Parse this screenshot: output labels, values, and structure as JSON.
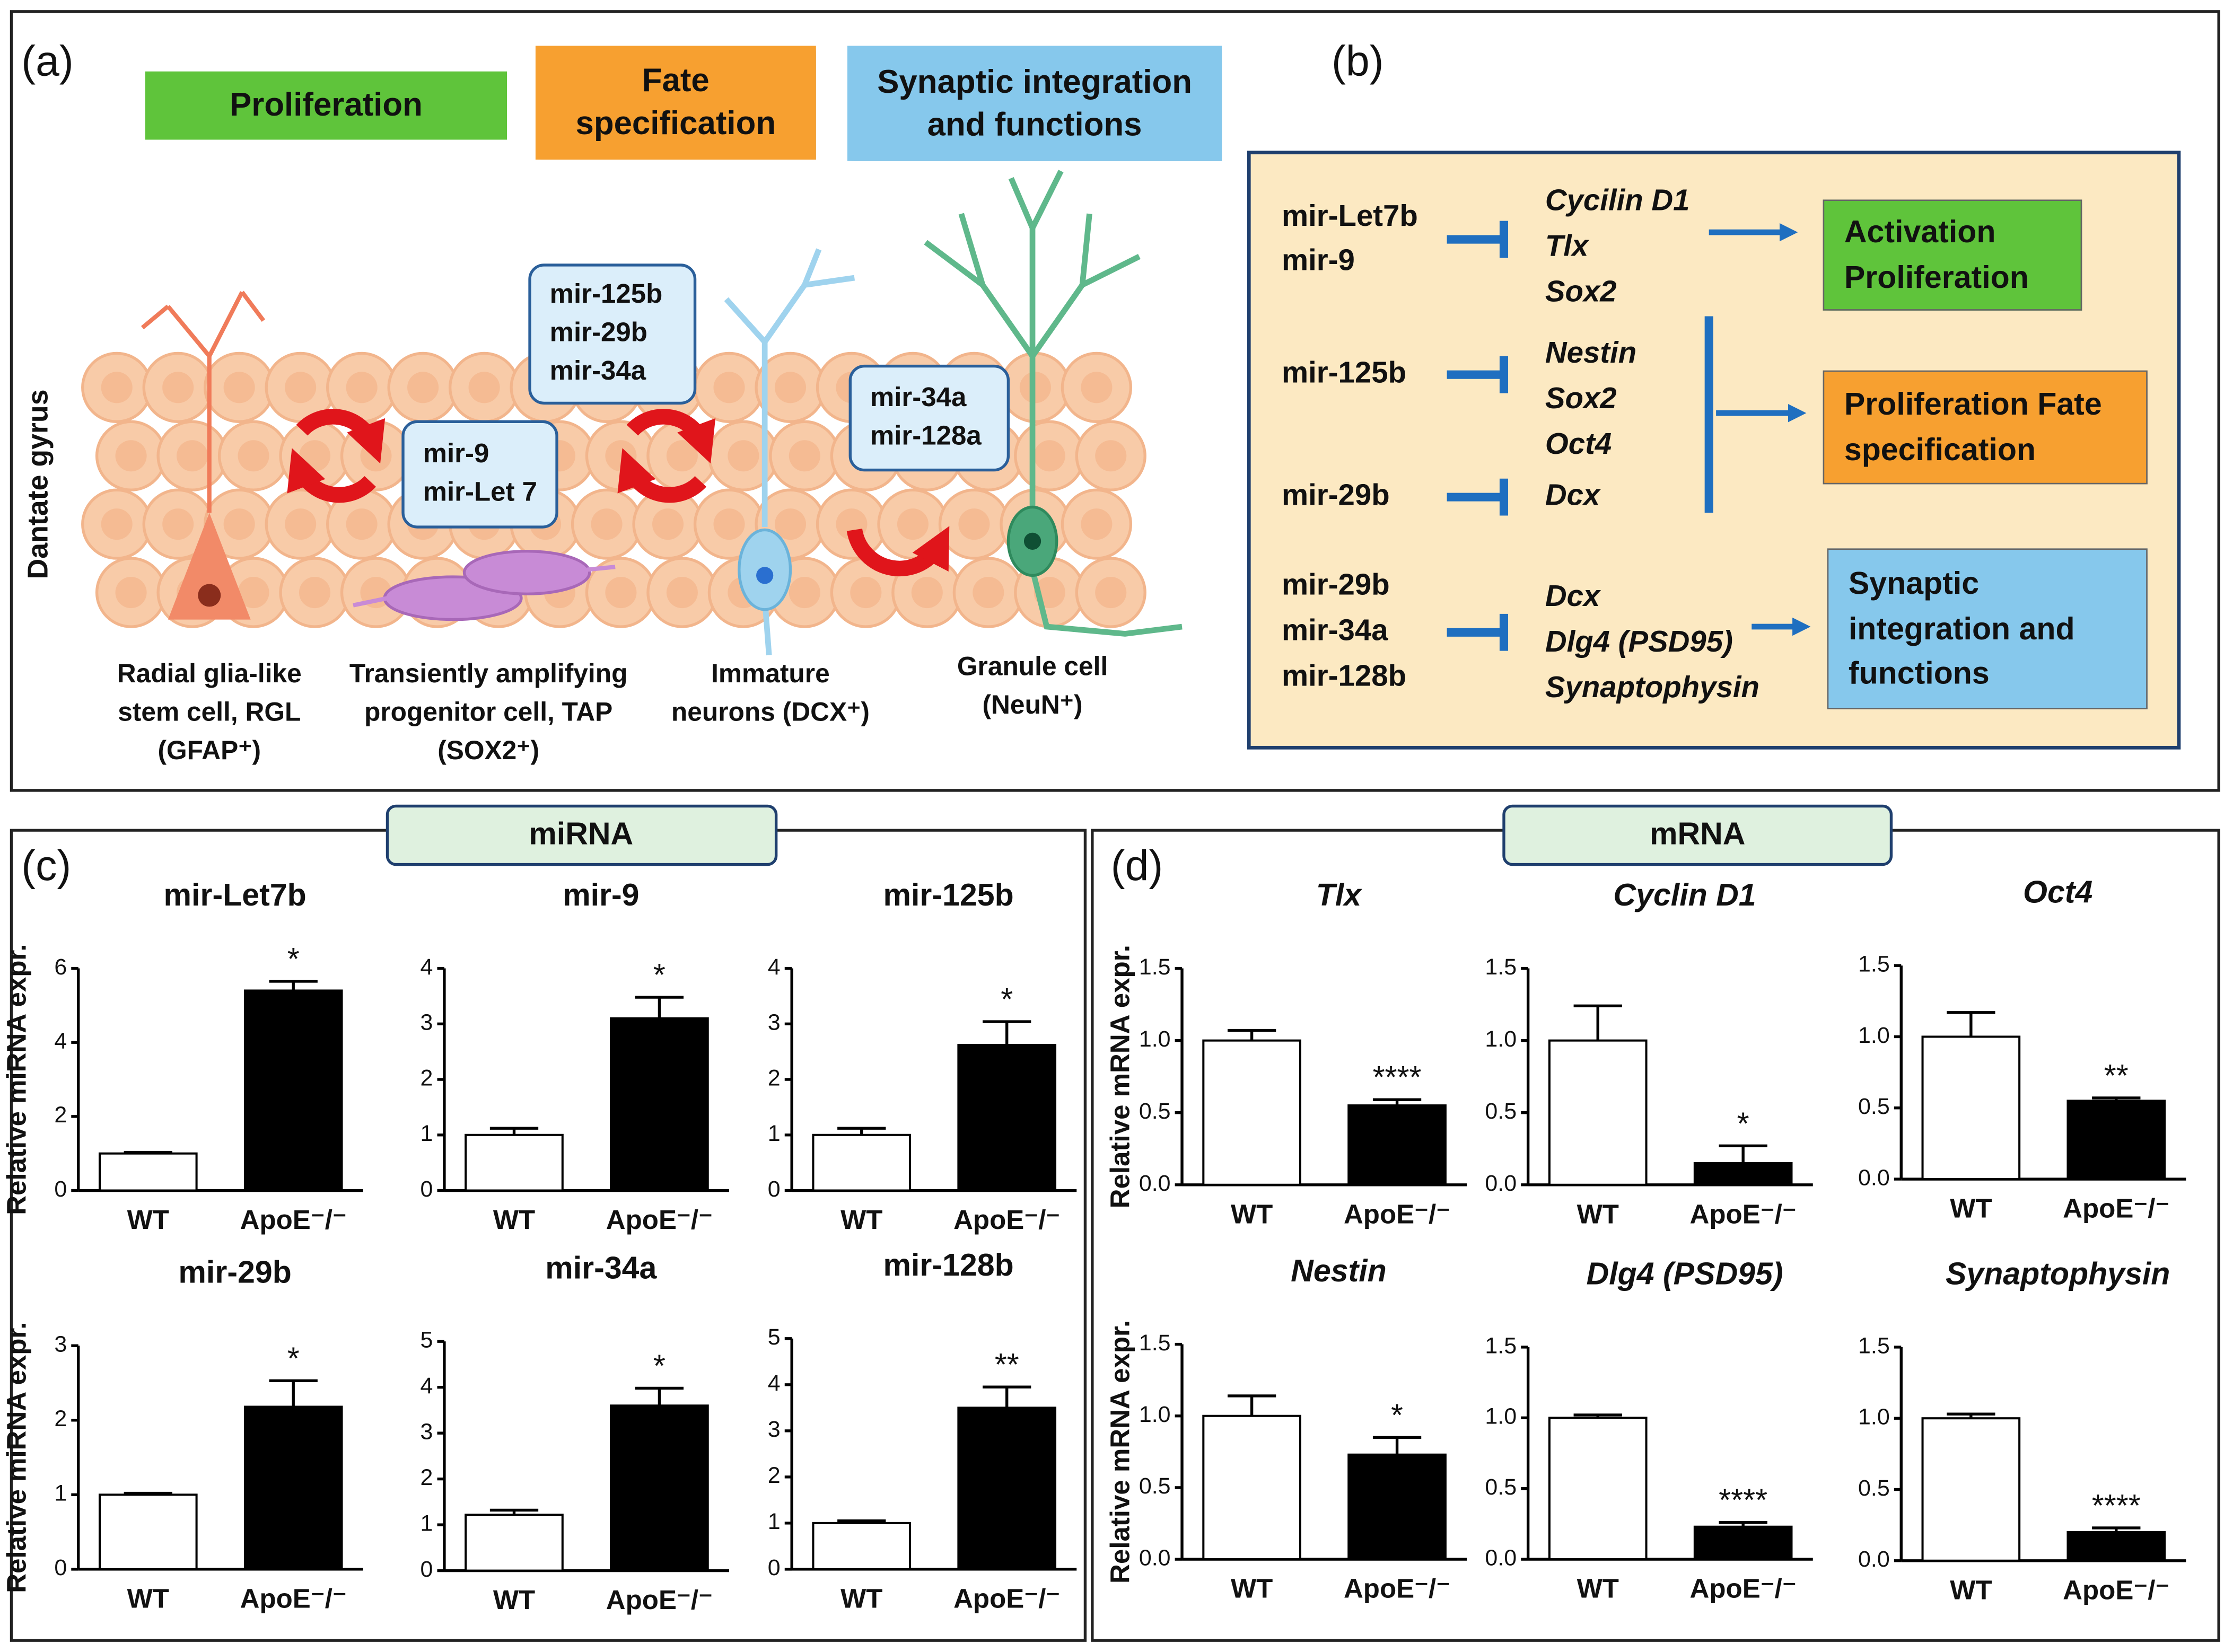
{
  "panel_a": {
    "label": "(a)",
    "stages": [
      "Proliferation",
      "Fate specification",
      "Synaptic integration and functions"
    ],
    "region": "Dantate gyrus",
    "mirna_groups": [
      [
        "mir-125b",
        "mir-29b",
        "mir-34a"
      ],
      [
        "mir-9",
        "mir-Let 7"
      ],
      [
        "mir-34a",
        "mir-128a"
      ]
    ],
    "cells": [
      "Radial glia-like stem cell, RGL (GFAP⁺)",
      "Transiently amplifying progenitor cell, TAP (SOX2⁺)",
      "Immature neurons (DCX⁺)",
      "Granule cell (NeuN⁺)"
    ]
  },
  "panel_b": {
    "label": "(b)",
    "pathways": [
      {
        "mirnas": [
          [
            "mir-Let7b",
            "mir-9"
          ]
        ],
        "targets": [
          [
            "Cycilin D1",
            "Tlx",
            "Sox2"
          ]
        ],
        "outcome": "Activation Proliferation"
      },
      {
        "mirnas": [
          [
            "mir-125b"
          ],
          [
            "mir-29b"
          ]
        ],
        "targets": [
          [
            "Nestin",
            "Sox2",
            "Oct4"
          ],
          [
            "Dcx"
          ]
        ],
        "outcome": "Proliferation Fate specification"
      },
      {
        "mirnas": [
          [
            "mir-29b",
            "mir-34a",
            "mir-128b"
          ]
        ],
        "targets": [
          [
            "Dcx",
            "Dlg4 (PSD95)",
            "Synaptophysin"
          ]
        ],
        "outcome": "Synaptic integration and functions"
      }
    ]
  },
  "panel_c": {
    "label": "(c)",
    "group": "miRNA"
  },
  "panel_d": {
    "label": "(d)",
    "group": "mRNA"
  },
  "chart_data": [
    {
      "type": "bar",
      "title": "mir-Let7b",
      "ylabel": "Relative miRNA expr.",
      "categories": [
        "WT",
        "ApoE⁻/⁻"
      ],
      "values": [
        1,
        5.4
      ],
      "errors": [
        0.03,
        0.25
      ],
      "colors": [
        "#ffffff",
        "#000000"
      ],
      "annotation": "*",
      "ylim": [
        0,
        6
      ],
      "yticks": [
        0,
        2,
        4,
        6
      ]
    },
    {
      "type": "bar",
      "title": "mir-9",
      "categories": [
        "WT",
        "ApoE⁻/⁻"
      ],
      "values": [
        1,
        3.1
      ],
      "errors": [
        0.12,
        0.38
      ],
      "colors": [
        "#ffffff",
        "#000000"
      ],
      "annotation": "*",
      "ylim": [
        0,
        4
      ],
      "yticks": [
        0,
        1,
        2,
        3,
        4
      ]
    },
    {
      "type": "bar",
      "title": "mir-125b",
      "categories": [
        "WT",
        "ApoE⁻/⁻"
      ],
      "values": [
        1,
        2.62
      ],
      "errors": [
        0.12,
        0.42
      ],
      "colors": [
        "#ffffff",
        "#000000"
      ],
      "annotation": "*",
      "ylim": [
        0,
        4
      ],
      "yticks": [
        0,
        1,
        2,
        3,
        4
      ]
    },
    {
      "type": "bar",
      "title": "mir-29b",
      "ylabel": "Relative miRNA expr.",
      "categories": [
        "WT",
        "ApoE⁻/⁻"
      ],
      "values": [
        1,
        2.18
      ],
      "errors": [
        0.02,
        0.35
      ],
      "colors": [
        "#ffffff",
        "#000000"
      ],
      "annotation": "*",
      "ylim": [
        0,
        3
      ],
      "yticks": [
        0,
        1,
        2,
        3
      ]
    },
    {
      "type": "bar",
      "title": "mir-34a",
      "categories": [
        "WT",
        "ApoE⁻/⁻"
      ],
      "values": [
        1.22,
        3.6
      ],
      "errors": [
        0.1,
        0.38
      ],
      "colors": [
        "#ffffff",
        "#000000"
      ],
      "annotation": "*",
      "ylim": [
        0,
        5
      ],
      "yticks": [
        0,
        1,
        2,
        3,
        4,
        5
      ]
    },
    {
      "type": "bar",
      "title": "mir-128b",
      "categories": [
        "WT",
        "ApoE⁻/⁻"
      ],
      "values": [
        1,
        3.5
      ],
      "errors": [
        0.05,
        0.45
      ],
      "colors": [
        "#ffffff",
        "#000000"
      ],
      "annotation": "**",
      "ylim": [
        0,
        5
      ],
      "yticks": [
        0,
        1,
        2,
        3,
        4,
        5
      ]
    },
    {
      "type": "bar",
      "title": "Tlx",
      "ylabel": "Relative mRNA expr.",
      "categories": [
        "WT",
        "ApoE⁻/⁻"
      ],
      "values": [
        1,
        0.55
      ],
      "errors": [
        0.07,
        0.04
      ],
      "colors": [
        "#ffffff",
        "#000000"
      ],
      "annotation": "****",
      "ylim": [
        0,
        1.5
      ],
      "yticks": [
        {
          "value": 0,
          "label": "0.0"
        },
        0.5,
        {
          "value": 1,
          "label": "1.0"
        },
        1.5
      ]
    },
    {
      "type": "bar",
      "title": "Cyclin D1",
      "categories": [
        "WT",
        "ApoE⁻/⁻"
      ],
      "values": [
        1,
        0.15
      ],
      "errors": [
        0.24,
        0.12
      ],
      "colors": [
        "#ffffff",
        "#000000"
      ],
      "annotation": "*",
      "ylim": [
        0,
        1.5
      ],
      "yticks": [
        {
          "value": 0,
          "label": "0.0"
        },
        0.5,
        {
          "value": 1,
          "label": "1.0"
        },
        1.5
      ]
    },
    {
      "type": "bar",
      "title": "Oct4",
      "categories": [
        "WT",
        "ApoE⁻/⁻"
      ],
      "values": [
        1,
        0.55
      ],
      "errors": [
        0.17,
        0.02
      ],
      "colors": [
        "#ffffff",
        "#000000"
      ],
      "annotation": "**",
      "ylim": [
        0,
        1.5
      ],
      "yticks": [
        {
          "value": 0,
          "label": "0.0"
        },
        0.5,
        {
          "value": 1,
          "label": "1.0"
        },
        1.5
      ]
    },
    {
      "type": "bar",
      "title": "Nestin",
      "ylabel": "Relative mRNA expr.",
      "categories": [
        "WT",
        "ApoE⁻/⁻"
      ],
      "values": [
        1,
        0.73
      ],
      "errors": [
        0.14,
        0.12
      ],
      "colors": [
        "#ffffff",
        "#000000"
      ],
      "annotation": "*",
      "ylim": [
        0,
        1.5
      ],
      "yticks": [
        {
          "value": 0,
          "label": "0.0"
        },
        0.5,
        {
          "value": 1,
          "label": "1.0"
        },
        1.5
      ]
    },
    {
      "type": "bar",
      "title": "Dlg4 (PSD95)",
      "categories": [
        "WT",
        "ApoE⁻/⁻"
      ],
      "values": [
        1,
        0.23
      ],
      "errors": [
        0.02,
        0.03
      ],
      "colors": [
        "#ffffff",
        "#000000"
      ],
      "annotation": "****",
      "ylim": [
        0,
        1.5
      ],
      "yticks": [
        {
          "value": 0,
          "label": "0.0"
        },
        0.5,
        {
          "value": 1,
          "label": "1.0"
        },
        1.5
      ]
    },
    {
      "type": "bar",
      "title": "Synaptophysin",
      "categories": [
        "WT",
        "ApoE⁻/⁻"
      ],
      "values": [
        1,
        0.2
      ],
      "errors": [
        0.03,
        0.03
      ],
      "colors": [
        "#ffffff",
        "#000000"
      ],
      "annotation": "****",
      "ylim": [
        0,
        1.5
      ],
      "yticks": [
        {
          "value": 0,
          "label": "0.0"
        },
        0.5,
        {
          "value": 1,
          "label": "1.0"
        },
        1.5
      ]
    }
  ]
}
